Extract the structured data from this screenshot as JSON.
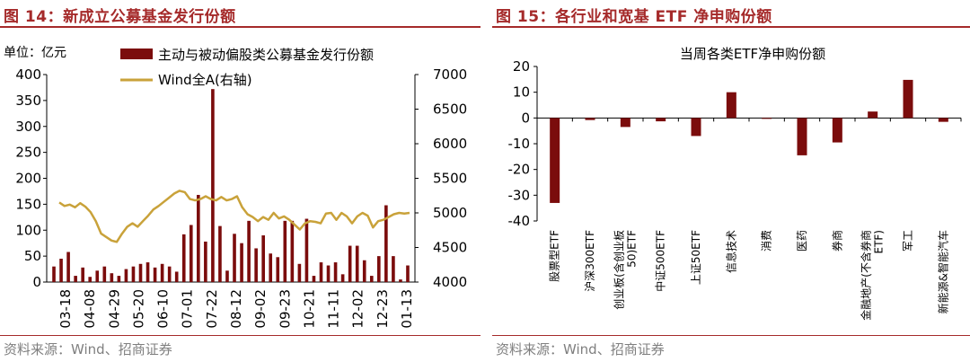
{
  "left": {
    "title": "图 14：新成立公募基金发行份额",
    "source": "资料来源：Wind、招商证券",
    "unit_label": "单位：亿元"
  },
  "right": {
    "title": "图 15：各行业和宽基 ETF 净申购份额",
    "source": "资料来源：Wind、招商证券"
  },
  "colors": {
    "bar": "#7b0c0c",
    "line": "#c9a23a",
    "title": "#a52a2a",
    "axis": "#000000"
  },
  "chart_data": [
    {
      "type": "bar",
      "title": "",
      "series": [
        {
          "name": "主动与被动偏股类公募基金发行份额",
          "axis": "left",
          "type": "bar",
          "values": [
            30,
            45,
            58,
            12,
            28,
            10,
            22,
            30,
            17,
            12,
            25,
            30,
            35,
            38,
            28,
            35,
            30,
            20,
            92,
            110,
            168,
            78,
            372,
            108,
            22,
            93,
            75,
            118,
            65,
            90,
            55,
            48,
            118,
            118,
            35,
            122,
            12,
            38,
            32,
            38,
            15,
            70,
            70,
            42,
            12,
            50,
            148,
            50,
            5,
            32
          ]
        },
        {
          "name": "Wind全A(右轴)",
          "axis": "right",
          "type": "line",
          "values": [
            5150,
            5100,
            5120,
            5080,
            5140,
            5090,
            5010,
            4880,
            4700,
            4650,
            4600,
            4580,
            4700,
            4800,
            4850,
            4800,
            4880,
            4960,
            5050,
            5100,
            5160,
            5220,
            5280,
            5320,
            5300,
            5200,
            5180,
            5200,
            5240,
            5200,
            5180,
            5230,
            5180,
            5200,
            5240,
            5080,
            4980,
            4940,
            4880,
            4940,
            4900,
            5000,
            4920,
            4950,
            4900,
            4830,
            4760,
            4850,
            4880,
            4870,
            4850,
            4990,
            5000,
            4900,
            5000,
            4950,
            4850,
            4950,
            5000,
            4960,
            4790,
            4880,
            4900,
            4940,
            4980,
            5000,
            4990,
            5000
          ]
        }
      ],
      "x_tick_labels": [
        "03-18",
        "04-08",
        "04-29",
        "05-20",
        "06-10",
        "07-01",
        "07-22",
        "08-12",
        "09-02",
        "09-23",
        "10-21",
        "11-11",
        "12-02",
        "12-23",
        "01-13"
      ],
      "ylim_left": [
        0,
        400
      ],
      "yticks_left": [
        0,
        50,
        100,
        150,
        200,
        250,
        300,
        350,
        400
      ],
      "ylim_right": [
        4000,
        7000
      ],
      "yticks_right": [
        4000,
        4500,
        5000,
        5500,
        6000,
        6500,
        7000
      ],
      "legend_position": "top-left"
    },
    {
      "type": "bar",
      "title": "当周各类ETF净申购份额",
      "categories": [
        "股票型ETF",
        "沪深300ETF",
        "创业板(含创业板50)ETF",
        "中证500ETF",
        "上证50ETF",
        "信息技术",
        "消费",
        "医药",
        "券商",
        "金融地产(不含券商ETF)",
        "军工",
        "新能源&智能汽车"
      ],
      "category_lines": [
        [
          "股票型ETF"
        ],
        [
          "沪深300ETF"
        ],
        [
          "创业板(含创业板",
          "50)ETF"
        ],
        [
          "中证500ETF"
        ],
        [
          "上证50ETF"
        ],
        [
          "信息技术"
        ],
        [
          "消费"
        ],
        [
          "医药"
        ],
        [
          "券商"
        ],
        [
          "金融地产(不含券商",
          "ETF)"
        ],
        [
          "军工"
        ],
        [
          "新能源&智能汽车"
        ]
      ],
      "values": [
        -33,
        -0.8,
        -3.5,
        -1.3,
        -7,
        10,
        -0.2,
        -14.5,
        -9.5,
        2.5,
        14.8,
        -1.5
      ],
      "ylim": [
        -40,
        20
      ],
      "yticks": [
        -40,
        -30,
        -20,
        -10,
        0,
        10,
        20
      ]
    }
  ]
}
